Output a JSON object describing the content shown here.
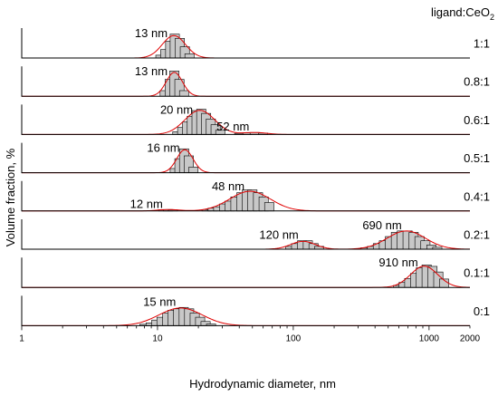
{
  "chart_data": {
    "type": "bar",
    "xlabel": "Hydrodynamic diameter, nm",
    "ylabel": "Volume fraction, %",
    "xscale": "log",
    "xlim": [
      1,
      2000
    ],
    "x_ticks": [
      1,
      10,
      100,
      1000,
      2000
    ],
    "x_tick_labels": [
      "1",
      "10",
      "100",
      "1000",
      "2000"
    ],
    "legend_title_prefix": "ligand:CeO",
    "legend_title_subscript": "2",
    "panels": [
      {
        "ratio": "1:1",
        "peaks": [
          {
            "label": "13 nm",
            "center": 13
          }
        ],
        "bars": [
          [
            10.5,
            1
          ],
          [
            11.4,
            3
          ],
          [
            12.4,
            6
          ],
          [
            13.4,
            8.5
          ],
          [
            14.6,
            7
          ],
          [
            15.9,
            4
          ],
          [
            17.2,
            1.5
          ]
        ],
        "fit": [
          {
            "center": 13.2,
            "sigma": 0.085,
            "height": 8
          }
        ]
      },
      {
        "ratio": "0.8:1",
        "peaks": [
          {
            "label": "13 nm",
            "center": 13
          }
        ],
        "bars": [
          [
            11.3,
            2
          ],
          [
            12.3,
            6
          ],
          [
            13.3,
            9
          ],
          [
            14.5,
            6
          ],
          [
            15.7,
            2
          ]
        ],
        "fit": [
          {
            "center": 13.3,
            "sigma": 0.06,
            "height": 8.5
          }
        ]
      },
      {
        "ratio": "0.6:1",
        "peaks": [
          {
            "label": "20 nm",
            "center": 20
          },
          {
            "label": "52 nm",
            "center": 52
          }
        ],
        "bars": [
          [
            14,
            1
          ],
          [
            15.2,
            2.5
          ],
          [
            16.5,
            4.5
          ],
          [
            17.9,
            6.5
          ],
          [
            19.4,
            8.5
          ],
          [
            21,
            9
          ],
          [
            22.8,
            7.5
          ],
          [
            24.7,
            5.5
          ],
          [
            26.8,
            3.5
          ],
          [
            29,
            1.5
          ],
          [
            40,
            0.4
          ],
          [
            46,
            0.6
          ],
          [
            52,
            0.7
          ],
          [
            60,
            0.5
          ]
        ],
        "fit": [
          {
            "center": 20.5,
            "sigma": 0.11,
            "height": 8.6
          },
          {
            "center": 52,
            "sigma": 0.09,
            "height": 0.7
          }
        ]
      },
      {
        "ratio": "0.5:1",
        "peaks": [
          {
            "label": "16 nm",
            "center": 16
          }
        ],
        "bars": [
          [
            13.4,
            1.5
          ],
          [
            14.5,
            5
          ],
          [
            15.7,
            8.5
          ],
          [
            17,
            6
          ],
          [
            18.4,
            2
          ]
        ],
        "fit": [
          {
            "center": 15.9,
            "sigma": 0.06,
            "height": 8.2
          }
        ]
      },
      {
        "ratio": "0.4:1",
        "peaks": [
          {
            "label": "12 nm",
            "center": 12
          },
          {
            "label": "48 nm",
            "center": 48
          }
        ],
        "bars": [
          [
            11,
            0.4
          ],
          [
            12,
            0.5
          ],
          [
            13,
            0.4
          ],
          [
            23,
            0.5
          ],
          [
            25.5,
            1
          ],
          [
            28,
            1.5
          ],
          [
            31,
            2.5
          ],
          [
            34,
            3.5
          ],
          [
            37.5,
            5
          ],
          [
            41.5,
            6.5
          ],
          [
            45.5,
            7.5
          ],
          [
            50,
            7.5
          ],
          [
            55,
            6.5
          ],
          [
            60.5,
            5
          ],
          [
            66.5,
            3
          ]
        ],
        "fit": [
          {
            "center": 12,
            "sigma": 0.08,
            "height": 0.5
          },
          {
            "center": 48,
            "sigma": 0.15,
            "height": 7
          }
        ]
      },
      {
        "ratio": "0.2:1",
        "peaks": [
          {
            "label": "120 nm",
            "center": 120
          },
          {
            "label": "690 nm",
            "center": 690
          }
        ],
        "bars": [
          [
            95,
            1
          ],
          [
            105,
            2
          ],
          [
            116,
            3
          ],
          [
            128,
            3
          ],
          [
            141,
            2
          ],
          [
            155,
            1
          ],
          [
            340,
            0.5
          ],
          [
            380,
            1
          ],
          [
            420,
            2
          ],
          [
            465,
            3
          ],
          [
            515,
            4.5
          ],
          [
            570,
            6
          ],
          [
            630,
            6.5
          ],
          [
            695,
            6.5
          ],
          [
            770,
            6
          ],
          [
            850,
            4.5
          ],
          [
            940,
            3
          ],
          [
            1040,
            1.5
          ],
          [
            1150,
            0.7
          ]
        ],
        "fit": [
          {
            "center": 118,
            "sigma": 0.09,
            "height": 2.8
          },
          {
            "center": 680,
            "sigma": 0.14,
            "height": 6.5
          }
        ]
      },
      {
        "ratio": "0.1:1",
        "peaks": [
          {
            "label": "910 nm",
            "center": 910
          }
        ],
        "bars": [
          [
            590,
            0.7
          ],
          [
            650,
            1.8
          ],
          [
            715,
            3.2
          ],
          [
            790,
            5
          ],
          [
            870,
            7
          ],
          [
            960,
            8
          ],
          [
            1060,
            7.5
          ],
          [
            1170,
            5.5
          ],
          [
            1290,
            3
          ]
        ],
        "fit": [
          {
            "center": 920,
            "sigma": 0.1,
            "height": 7.6
          }
        ]
      },
      {
        "ratio": "0:1",
        "peaks": [
          {
            "label": "15 nm",
            "center": 15
          }
        ],
        "bars": [
          [
            8,
            0.5
          ],
          [
            8.9,
            1
          ],
          [
            9.8,
            2
          ],
          [
            10.7,
            3
          ],
          [
            11.8,
            4.5
          ],
          [
            12.9,
            5.5
          ],
          [
            14.2,
            6
          ],
          [
            15.6,
            6.5
          ],
          [
            17.1,
            6
          ],
          [
            18.8,
            4.5
          ],
          [
            20.6,
            3
          ],
          [
            22.6,
            1.5
          ],
          [
            24.8,
            0.6
          ]
        ],
        "fit": [
          {
            "center": 14.8,
            "sigma": 0.16,
            "height": 6.3
          }
        ]
      }
    ]
  }
}
